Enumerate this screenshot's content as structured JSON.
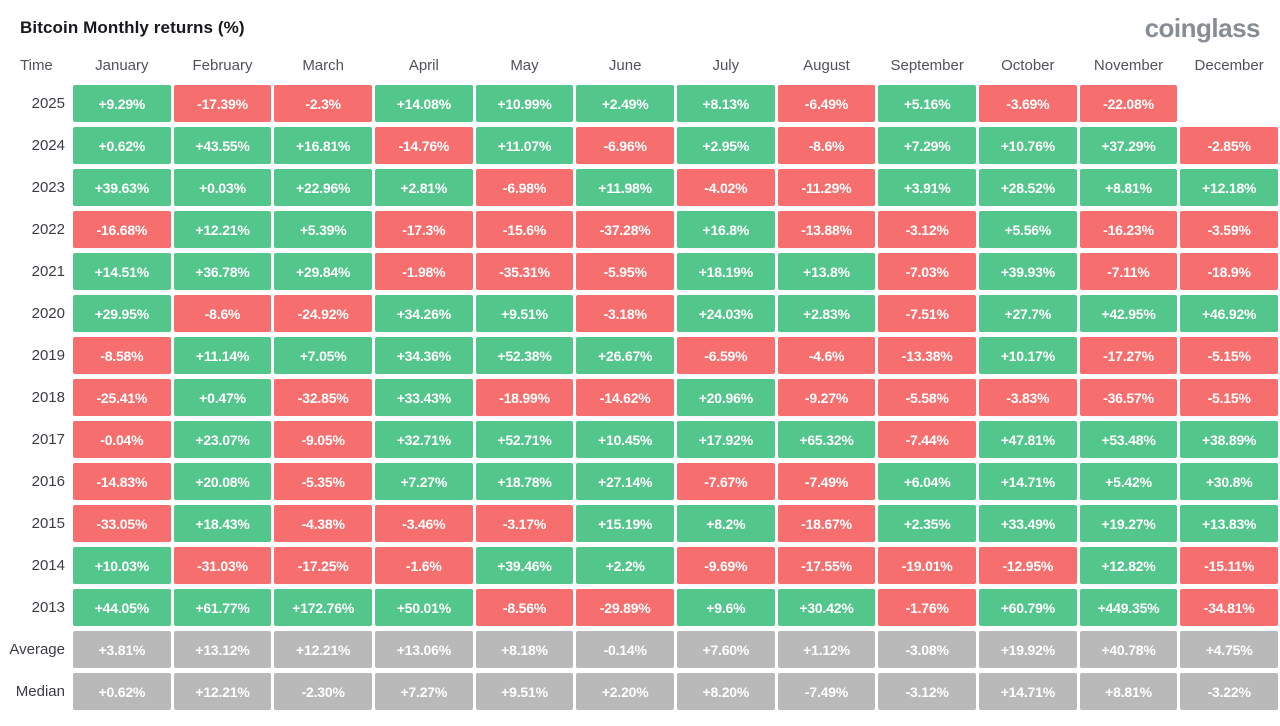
{
  "header": {
    "title": "Bitcoin Monthly returns (%)",
    "logo": "coinglass"
  },
  "colors": {
    "positive": "#53c68c",
    "negative": "#f66f6e",
    "summary": "#b9b9ba"
  },
  "table": {
    "columns": [
      "Time",
      "January",
      "February",
      "March",
      "April",
      "May",
      "June",
      "July",
      "August",
      "September",
      "October",
      "November",
      "December"
    ],
    "rows": [
      {
        "label": "2025",
        "type": "year",
        "values": [
          "+9.29%",
          "-17.39%",
          "-2.3%",
          "+14.08%",
          "+10.99%",
          "+2.49%",
          "+8.13%",
          "-6.49%",
          "+5.16%",
          "-3.69%",
          "-22.08%",
          null
        ]
      },
      {
        "label": "2024",
        "type": "year",
        "values": [
          "+0.62%",
          "+43.55%",
          "+16.81%",
          "-14.76%",
          "+11.07%",
          "-6.96%",
          "+2.95%",
          "-8.6%",
          "+7.29%",
          "+10.76%",
          "+37.29%",
          "-2.85%"
        ]
      },
      {
        "label": "2023",
        "type": "year",
        "values": [
          "+39.63%",
          "+0.03%",
          "+22.96%",
          "+2.81%",
          "-6.98%",
          "+11.98%",
          "-4.02%",
          "-11.29%",
          "+3.91%",
          "+28.52%",
          "+8.81%",
          "+12.18%"
        ]
      },
      {
        "label": "2022",
        "type": "year",
        "values": [
          "-16.68%",
          "+12.21%",
          "+5.39%",
          "-17.3%",
          "-15.6%",
          "-37.28%",
          "+16.8%",
          "-13.88%",
          "-3.12%",
          "+5.56%",
          "-16.23%",
          "-3.59%"
        ]
      },
      {
        "label": "2021",
        "type": "year",
        "values": [
          "+14.51%",
          "+36.78%",
          "+29.84%",
          "-1.98%",
          "-35.31%",
          "-5.95%",
          "+18.19%",
          "+13.8%",
          "-7.03%",
          "+39.93%",
          "-7.11%",
          "-18.9%"
        ]
      },
      {
        "label": "2020",
        "type": "year",
        "values": [
          "+29.95%",
          "-8.6%",
          "-24.92%",
          "+34.26%",
          "+9.51%",
          "-3.18%",
          "+24.03%",
          "+2.83%",
          "-7.51%",
          "+27.7%",
          "+42.95%",
          "+46.92%"
        ]
      },
      {
        "label": "2019",
        "type": "year",
        "values": [
          "-8.58%",
          "+11.14%",
          "+7.05%",
          "+34.36%",
          "+52.38%",
          "+26.67%",
          "-6.59%",
          "-4.6%",
          "-13.38%",
          "+10.17%",
          "-17.27%",
          "-5.15%"
        ]
      },
      {
        "label": "2018",
        "type": "year",
        "values": [
          "-25.41%",
          "+0.47%",
          "-32.85%",
          "+33.43%",
          "-18.99%",
          "-14.62%",
          "+20.96%",
          "-9.27%",
          "-5.58%",
          "-3.83%",
          "-36.57%",
          "-5.15%"
        ]
      },
      {
        "label": "2017",
        "type": "year",
        "values": [
          "-0.04%",
          "+23.07%",
          "-9.05%",
          "+32.71%",
          "+52.71%",
          "+10.45%",
          "+17.92%",
          "+65.32%",
          "-7.44%",
          "+47.81%",
          "+53.48%",
          "+38.89%"
        ]
      },
      {
        "label": "2016",
        "type": "year",
        "values": [
          "-14.83%",
          "+20.08%",
          "-5.35%",
          "+7.27%",
          "+18.78%",
          "+27.14%",
          "-7.67%",
          "-7.49%",
          "+6.04%",
          "+14.71%",
          "+5.42%",
          "+30.8%"
        ]
      },
      {
        "label": "2015",
        "type": "year",
        "values": [
          "-33.05%",
          "+18.43%",
          "-4.38%",
          "-3.46%",
          "-3.17%",
          "+15.19%",
          "+8.2%",
          "-18.67%",
          "+2.35%",
          "+33.49%",
          "+19.27%",
          "+13.83%"
        ]
      },
      {
        "label": "2014",
        "type": "year",
        "values": [
          "+10.03%",
          "-31.03%",
          "-17.25%",
          "-1.6%",
          "+39.46%",
          "+2.2%",
          "-9.69%",
          "-17.55%",
          "-19.01%",
          "-12.95%",
          "+12.82%",
          "-15.11%"
        ]
      },
      {
        "label": "2013",
        "type": "year",
        "values": [
          "+44.05%",
          "+61.77%",
          "+172.76%",
          "+50.01%",
          "-8.56%",
          "-29.89%",
          "+9.6%",
          "+30.42%",
          "-1.76%",
          "+60.79%",
          "+449.35%",
          "-34.81%"
        ]
      },
      {
        "label": "Average",
        "type": "summary",
        "values": [
          "+3.81%",
          "+13.12%",
          "+12.21%",
          "+13.06%",
          "+8.18%",
          "-0.14%",
          "+7.60%",
          "+1.12%",
          "-3.08%",
          "+19.92%",
          "+40.78%",
          "+4.75%"
        ]
      },
      {
        "label": "Median",
        "type": "summary",
        "values": [
          "+0.62%",
          "+12.21%",
          "-2.30%",
          "+7.27%",
          "+9.51%",
          "+2.20%",
          "+8.20%",
          "-7.49%",
          "-3.12%",
          "+14.71%",
          "+8.81%",
          "-3.22%"
        ]
      }
    ]
  },
  "chart_data": {
    "type": "heatmap",
    "title": "Bitcoin Monthly returns (%)",
    "unit": "%",
    "categories": [
      "January",
      "February",
      "March",
      "April",
      "May",
      "June",
      "July",
      "August",
      "September",
      "October",
      "November",
      "December"
    ],
    "series": [
      {
        "name": "2025",
        "values": [
          9.29,
          -17.39,
          -2.3,
          14.08,
          10.99,
          2.49,
          8.13,
          -6.49,
          5.16,
          -3.69,
          -22.08,
          null
        ]
      },
      {
        "name": "2024",
        "values": [
          0.62,
          43.55,
          16.81,
          -14.76,
          11.07,
          -6.96,
          2.95,
          -8.6,
          7.29,
          10.76,
          37.29,
          -2.85
        ]
      },
      {
        "name": "2023",
        "values": [
          39.63,
          0.03,
          22.96,
          2.81,
          -6.98,
          11.98,
          -4.02,
          -11.29,
          3.91,
          28.52,
          8.81,
          12.18
        ]
      },
      {
        "name": "2022",
        "values": [
          -16.68,
          12.21,
          5.39,
          -17.3,
          -15.6,
          -37.28,
          16.8,
          -13.88,
          -3.12,
          5.56,
          -16.23,
          -3.59
        ]
      },
      {
        "name": "2021",
        "values": [
          14.51,
          36.78,
          29.84,
          -1.98,
          -35.31,
          -5.95,
          18.19,
          13.8,
          -7.03,
          39.93,
          -7.11,
          -18.9
        ]
      },
      {
        "name": "2020",
        "values": [
          29.95,
          -8.6,
          -24.92,
          34.26,
          9.51,
          -3.18,
          24.03,
          2.83,
          -7.51,
          27.7,
          42.95,
          46.92
        ]
      },
      {
        "name": "2019",
        "values": [
          -8.58,
          11.14,
          7.05,
          34.36,
          52.38,
          26.67,
          -6.59,
          -4.6,
          -13.38,
          10.17,
          -17.27,
          -5.15
        ]
      },
      {
        "name": "2018",
        "values": [
          -25.41,
          0.47,
          -32.85,
          33.43,
          -18.99,
          -14.62,
          20.96,
          -9.27,
          -5.58,
          -3.83,
          -36.57,
          -5.15
        ]
      },
      {
        "name": "2017",
        "values": [
          -0.04,
          23.07,
          -9.05,
          32.71,
          52.71,
          10.45,
          17.92,
          65.32,
          -7.44,
          47.81,
          53.48,
          38.89
        ]
      },
      {
        "name": "2016",
        "values": [
          -14.83,
          20.08,
          -5.35,
          7.27,
          18.78,
          27.14,
          -7.67,
          -7.49,
          6.04,
          14.71,
          5.42,
          30.8
        ]
      },
      {
        "name": "2015",
        "values": [
          -33.05,
          18.43,
          -4.38,
          -3.46,
          -3.17,
          15.19,
          8.2,
          -18.67,
          2.35,
          33.49,
          19.27,
          13.83
        ]
      },
      {
        "name": "2014",
        "values": [
          10.03,
          -31.03,
          -17.25,
          -1.6,
          39.46,
          2.2,
          -9.69,
          -17.55,
          -19.01,
          -12.95,
          12.82,
          -15.11
        ]
      },
      {
        "name": "2013",
        "values": [
          44.05,
          61.77,
          172.76,
          50.01,
          -8.56,
          -29.89,
          9.6,
          30.42,
          -1.76,
          60.79,
          449.35,
          -34.81
        ]
      },
      {
        "name": "Average",
        "values": [
          3.81,
          13.12,
          12.21,
          13.06,
          8.18,
          -0.14,
          7.6,
          1.12,
          -3.08,
          19.92,
          40.78,
          4.75
        ]
      },
      {
        "name": "Median",
        "values": [
          0.62,
          12.21,
          -2.3,
          7.27,
          9.51,
          2.2,
          8.2,
          -7.49,
          -3.12,
          14.71,
          8.81,
          -3.22
        ]
      }
    ],
    "legend": "green = positive month, red = negative month, gray = summary row",
    "color_positive": "#53c68c",
    "color_negative": "#f66f6e",
    "color_summary": "#b9b9ba"
  }
}
